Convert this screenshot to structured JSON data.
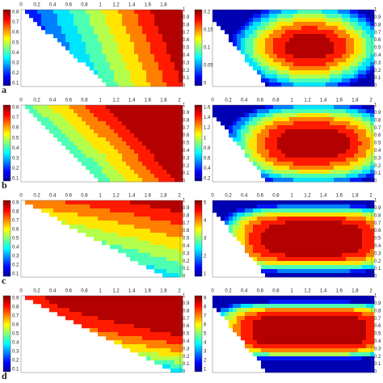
{
  "rows": [
    {
      "label": "a",
      "left": {
        "colorbar_ticks": [
          "0.8",
          "0.7",
          "0.6",
          "0.5",
          "0.4",
          "0.3",
          "0.2",
          "0.1"
        ],
        "x_ticks": [
          "0",
          "0.2",
          "0.4",
          "0.6",
          "0.8",
          "1",
          "1.2",
          "1.4",
          "1.6",
          "1.8"
        ],
        "y_ticks": [
          "1",
          "0.9",
          "0.8",
          "0.7",
          "0.6",
          "0.5",
          "0.4",
          "0.3",
          "0.2",
          "0.1",
          "0"
        ]
      },
      "right": {
        "colorbar_ticks": [
          "0.2",
          "0.15",
          "0.1",
          "0.05",
          "0"
        ],
        "y_ticks": [
          "1",
          "0.9",
          "0.8",
          "0.7",
          "0.6",
          "0.5",
          "0.4",
          "0.3",
          "0.2",
          "0.1",
          "0"
        ]
      }
    },
    {
      "label": "b",
      "left": {
        "colorbar_ticks": [
          "0.8",
          "0.7",
          "0.6",
          "0.5",
          "0.4",
          "0.3",
          "0.2",
          "0.1"
        ],
        "x_ticks": [
          "0",
          "0.2",
          "0.4",
          "0.6",
          "0.8",
          "1",
          "1.2",
          "1.4",
          "1.6",
          "1.8",
          "2"
        ],
        "y_ticks": [
          "1",
          "0.9",
          "0.8",
          "0.7",
          "0.6",
          "0.5",
          "0.4",
          "0.3",
          "0.2",
          "0.1",
          "0"
        ]
      },
      "right": {
        "colorbar_ticks": [
          "1.6",
          "1.4",
          "1.2",
          "1",
          "0.8",
          "0.6",
          "0.4",
          "0.2"
        ],
        "x_ticks": [
          "0",
          "0.2",
          "0.4",
          "0.6",
          "0.8",
          "1",
          "1.2",
          "1.4",
          "1.6",
          "1.8",
          "2"
        ],
        "y_ticks": [
          "1",
          "0.9",
          "0.8",
          "0.7",
          "0.6",
          "0.5",
          "0.4",
          "0.3",
          "0.2",
          "0.1",
          "0"
        ]
      }
    },
    {
      "label": "c",
      "left": {
        "colorbar_ticks": [
          "0.9",
          "0.8",
          "0.7",
          "0.6",
          "0.5",
          "0.4",
          "0.3",
          "0.2",
          "0.1"
        ],
        "x_ticks": [
          "0",
          "0.2",
          "0.4",
          "0.6",
          "0.8",
          "1",
          "1.2",
          "1.4",
          "1.6",
          "1.8",
          "2"
        ],
        "y_ticks": [
          "1",
          "0.9",
          "0.8",
          "0.7",
          "0.6",
          "0.5",
          "0.4",
          "0.3",
          "0.2",
          "0.1",
          "0"
        ]
      },
      "right": {
        "colorbar_ticks": [
          "5",
          "4",
          "3",
          "2",
          "1"
        ],
        "x_ticks": [
          "0",
          "0.2",
          "0.4",
          "0.6",
          "0.8",
          "1",
          "1.2",
          "1.4",
          "1.6",
          "1.8",
          "2"
        ],
        "y_ticks": [
          "1",
          "0.9",
          "0.8",
          "0.7",
          "0.6",
          "0.5",
          "0.4",
          "0.3",
          "0.2",
          "0.1",
          "0"
        ]
      }
    },
    {
      "label": "d",
      "left": {
        "colorbar_ticks": [
          "0.9",
          "0.8",
          "0.7",
          "0.6",
          "0.5",
          "0.4",
          "0.3",
          "0.2",
          "0.1"
        ],
        "x_ticks": [
          "0",
          "0.2",
          "0.4",
          "0.6",
          "0.8",
          "1",
          "1.2",
          "1.4",
          "1.6",
          "1.8",
          "2"
        ],
        "y_ticks": [
          "1",
          "0.9",
          "0.8",
          "0.7",
          "0.6",
          "0.5",
          "0.4",
          "0.3",
          "0.2",
          "0.1",
          "0"
        ]
      },
      "right": {
        "colorbar_ticks": [
          "9",
          "8",
          "7",
          "6",
          "5",
          "4",
          "3",
          "2",
          "1"
        ],
        "x_ticks": [
          "0",
          "0.2",
          "0.4",
          "0.6",
          "0.8",
          "1",
          "1.2",
          "1.4",
          "1.6",
          "1.8",
          "2"
        ],
        "y_ticks": [
          "1",
          "0.9",
          "0.8",
          "0.7",
          "0.6",
          "0.5",
          "0.4",
          "0.3",
          "0.2",
          "0.1",
          "0"
        ]
      }
    }
  ]
}
